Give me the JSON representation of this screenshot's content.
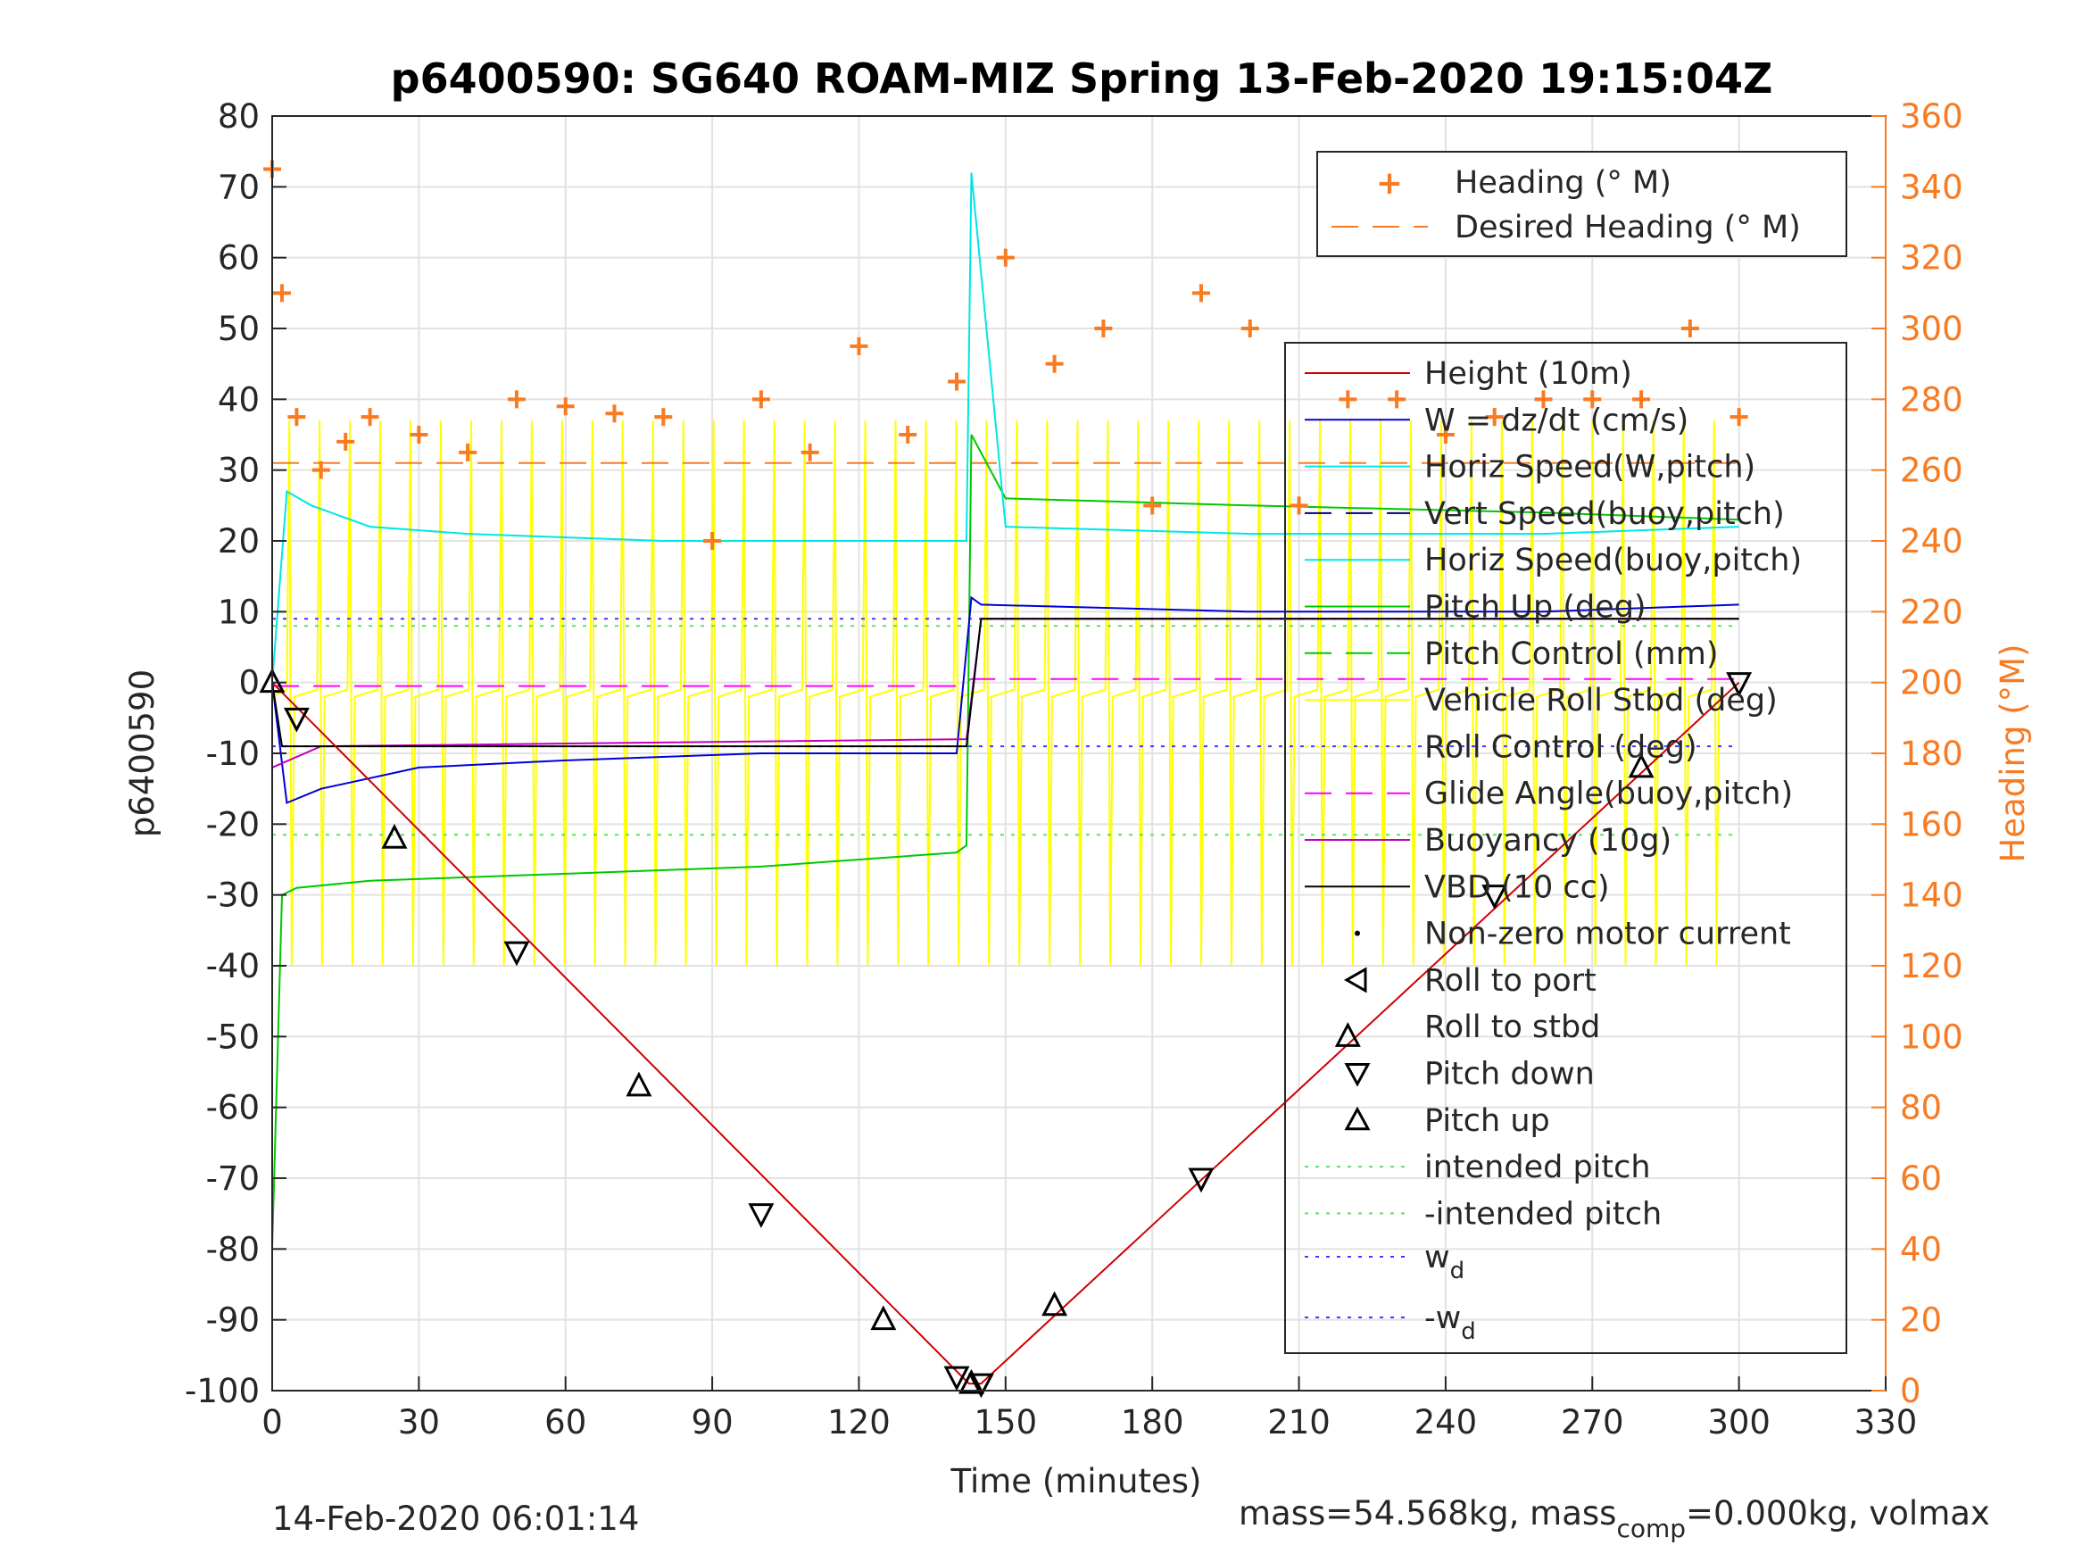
{
  "chart_data": {
    "type": "line",
    "title": "p6400590: SG640 ROAM-MIZ Spring 13-Feb-2020 19:15:04Z",
    "xlabel": "Time (minutes)",
    "ylabel": "p6400590",
    "ylabel_right": "Heading (°M)",
    "xlim": [
      0,
      330
    ],
    "ylim": [
      -100,
      80
    ],
    "ylim_right": [
      0,
      360
    ],
    "xticks": [
      0,
      30,
      60,
      90,
      120,
      150,
      180,
      210,
      240,
      270,
      300,
      330
    ],
    "yticks": [
      -100,
      -90,
      -80,
      -70,
      -60,
      -50,
      -40,
      -30,
      -20,
      -10,
      0,
      10,
      20,
      30,
      40,
      50,
      60,
      70,
      80
    ],
    "yticks_right": [
      0,
      20,
      40,
      60,
      80,
      100,
      120,
      140,
      160,
      180,
      200,
      220,
      240,
      260,
      280,
      300,
      320,
      340,
      360
    ],
    "grid": true,
    "footer_left": "14-Feb-2020 06:01:14",
    "footer_right_pre": "mass=54.568kg, mass",
    "footer_right_sub": "comp",
    "footer_right_post": "=0.000kg, volmax",
    "legend_top": {
      "placement": "top-right",
      "entries": [
        "Heading (° M)",
        "Desired Heading (° M)"
      ]
    },
    "legend_main": {
      "placement": "right",
      "entries": [
        "Height (10m)",
        "W = dz/dt (cm/s)",
        "Horiz Speed(W,pitch)",
        "Vert Speed(buoy,pitch)",
        "Horiz Speed(buoy,pitch)",
        "Pitch Up (deg)",
        "Pitch Control (mm)",
        "Vehicle Roll Stbd (deg)",
        "Roll Control (deg)",
        "Glide Angle(buoy,pitch)",
        "Buoyancy (10g)",
        "VBD (10 cc)",
        "Non-zero motor current",
        "Roll to port",
        "Roll to stbd",
        "Pitch down",
        "Pitch up",
        "intended pitch",
        "-intended pitch"
      ],
      "wd_main": "w",
      "wd_sub": "d",
      "wd_neg_main": "-w",
      "wd_neg_sub": "d"
    },
    "colors": {
      "heading": "#f97b21",
      "height": "#d00000",
      "w": "#0000d8",
      "horiz_w": "#00e6e6",
      "pitch": "#00c800",
      "roll": "#ffff00",
      "glide": "#ff00ff",
      "buoy": "#c000c0",
      "vbd": "#000000"
    },
    "series": [
      {
        "name": "Height (10m)",
        "x": [
          0,
          142.5,
          145,
          300
        ],
        "y": [
          0,
          -99,
          -99,
          0
        ]
      },
      {
        "name": "W = dz/dt (cm/s)",
        "x": [
          0,
          3,
          10,
          30,
          60,
          100,
          140,
          143,
          145,
          200,
          260,
          300
        ],
        "y": [
          0,
          -17,
          -15,
          -12,
          -11,
          -10,
          -10,
          12,
          11,
          10,
          10,
          11
        ]
      },
      {
        "name": "Horiz Speed(W,pitch)",
        "x": [
          0,
          3,
          8,
          20,
          40,
          80,
          120,
          142,
          143,
          150,
          200,
          260,
          300
        ],
        "y": [
          0,
          27,
          25,
          22,
          21,
          20,
          20,
          20,
          72,
          22,
          21,
          21,
          22
        ]
      },
      {
        "name": "Pitch Control (mm)",
        "x": [
          0,
          2,
          5,
          20,
          60,
          100,
          140,
          142,
          143,
          150,
          200,
          260,
          300
        ],
        "y": [
          -80,
          -30,
          -29,
          -28,
          -27,
          -26,
          -24,
          -23,
          35,
          26,
          25,
          24,
          23
        ]
      },
      {
        "name": "VBD (10 cc)",
        "x": [
          0,
          2,
          142,
          145,
          300
        ],
        "y": [
          0,
          -9,
          -9,
          9,
          9
        ]
      },
      {
        "name": "Buoyancy (10g)",
        "x": [
          0,
          10,
          142,
          145,
          300
        ],
        "y": [
          -12,
          -9,
          -8,
          9,
          9
        ]
      },
      {
        "name": "intended pitch",
        "x": [
          0,
          300
        ],
        "y": [
          -21.5,
          -21.5
        ]
      },
      {
        "name": "-intended pitch",
        "x": [
          0,
          300
        ],
        "y": [
          8,
          8
        ]
      },
      {
        "name": "wd",
        "x": [
          0,
          300
        ],
        "y": [
          9,
          9
        ]
      },
      {
        "name": "-wd",
        "x": [
          0,
          300
        ],
        "y": [
          -9,
          -9
        ]
      },
      {
        "name": "Glide Angle(buoy,pitch)",
        "x": [
          0,
          140,
          143,
          300
        ],
        "y": [
          -0.5,
          -0.5,
          0.5,
          0.5
        ]
      },
      {
        "name": "Desired Heading (° M)",
        "x": [
          0,
          300
        ],
        "y": [
          262,
          262
        ]
      },
      {
        "name": "Heading (° M)",
        "x": [
          0,
          2,
          5,
          10,
          15,
          20,
          30,
          40,
          50,
          60,
          70,
          80,
          90,
          100,
          110,
          120,
          130,
          140,
          150,
          160,
          170,
          180,
          190,
          200,
          210,
          220,
          230,
          240,
          250,
          260,
          270,
          280,
          290,
          300
        ],
        "y": [
          345,
          310,
          275,
          260,
          268,
          275,
          270,
          265,
          280,
          278,
          276,
          275,
          240,
          280,
          265,
          295,
          270,
          285,
          320,
          290,
          300,
          250,
          310,
          300,
          250,
          280,
          280,
          270,
          275,
          280,
          280,
          280,
          300,
          275
        ]
      },
      {
        "name": "Pitch Up/Pitch down",
        "x": [
          0,
          5,
          25,
          50,
          75,
          100,
          125,
          140,
          143,
          145,
          160,
          190,
          220,
          250,
          280,
          300
        ],
        "y": [
          0,
          -5,
          -22,
          -38,
          -57,
          -75,
          -90,
          -98,
          -99,
          -99,
          -88,
          -70,
          -50,
          -30,
          -12,
          0
        ]
      }
    ]
  }
}
